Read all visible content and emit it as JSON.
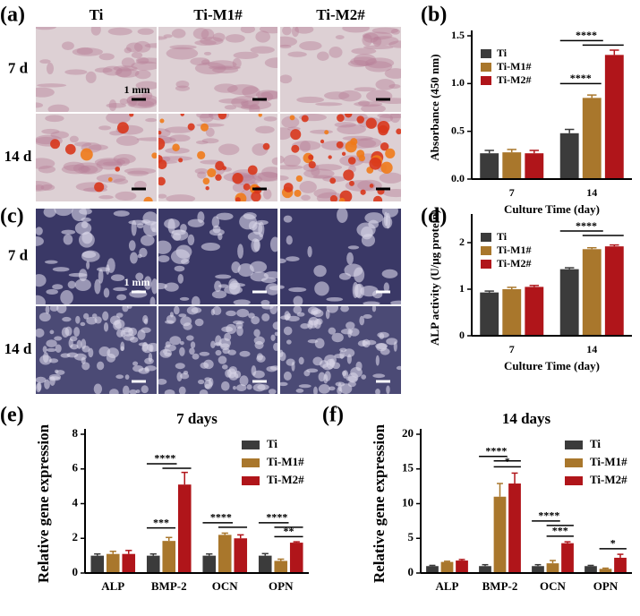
{
  "image_panels": [
    {
      "label": "(a)",
      "columns": [
        "Ti",
        "Ti-M1#",
        "Ti-M2#"
      ],
      "rows": [
        "7 d",
        "14 d"
      ],
      "scale_bar": "1 mm"
    },
    {
      "label": "(c)",
      "rows": [
        "7 d",
        "14 d"
      ],
      "scale_bar": "1 mm"
    }
  ],
  "chart_data": [
    {
      "type": "bar",
      "panel": "(b)",
      "x_label": "Culture Time (day)",
      "y_label": "Absorbance (450 nm)",
      "categories": [
        "7",
        "14"
      ],
      "series": [
        {
          "name": "Ti",
          "color": "#3b3b3b",
          "values": [
            0.27,
            0.48
          ],
          "errors": [
            0.03,
            0.04
          ]
        },
        {
          "name": "Ti-M1#",
          "color": "#a9772c",
          "values": [
            0.28,
            0.85
          ],
          "errors": [
            0.03,
            0.03
          ]
        },
        {
          "name": "Ti-M2#",
          "color": "#b0151a",
          "values": [
            0.27,
            1.3
          ],
          "errors": [
            0.03,
            0.05
          ]
        }
      ],
      "ylim": [
        0,
        1.5
      ],
      "yticks": [
        {
          "value": 0,
          "label": "0.0"
        },
        0.5,
        {
          "value": 1,
          "label": "1.0"
        },
        1.5
      ],
      "legend": "upper left",
      "annotations": [
        "****",
        "****"
      ]
    },
    {
      "type": "bar",
      "panel": "(d)",
      "x_label": "Culture Time (day)",
      "y_label": "ALP activity (U/μg protein)",
      "categories": [
        "7",
        "14"
      ],
      "series": [
        {
          "name": "Ti",
          "color": "#3b3b3b",
          "values": [
            0.93,
            1.43
          ],
          "errors": [
            0.03,
            0.03
          ]
        },
        {
          "name": "Ti-M1#",
          "color": "#a9772c",
          "values": [
            1.0,
            1.86
          ],
          "errors": [
            0.04,
            0.03
          ]
        },
        {
          "name": "Ti-M2#",
          "color": "#b0151a",
          "values": [
            1.05,
            1.92
          ],
          "errors": [
            0.03,
            0.03
          ]
        }
      ],
      "ylim": [
        0,
        2.5
      ],
      "yticks": [
        0,
        1,
        2
      ],
      "legend": "upper left",
      "annotations": [
        "****"
      ]
    },
    {
      "type": "bar",
      "panel": "(e)",
      "title": "7 days",
      "y_label": "Relative gene expression",
      "categories": [
        "ALP",
        "BMP-2",
        "OCN",
        "OPN"
      ],
      "series": [
        {
          "name": "Ti",
          "color": "#3b3b3b",
          "values": [
            1.0,
            1.0,
            1.0,
            1.0
          ],
          "errors": [
            0.1,
            0.1,
            0.1,
            0.12
          ]
        },
        {
          "name": "Ti-M1#",
          "color": "#a9772c",
          "values": [
            1.1,
            1.85,
            2.2,
            0.7
          ],
          "errors": [
            0.15,
            0.2,
            0.1,
            0.1
          ]
        },
        {
          "name": "Ti-M2#",
          "color": "#b0151a",
          "values": [
            1.1,
            5.1,
            2.0,
            1.75
          ],
          "errors": [
            0.2,
            0.7,
            0.2,
            0.05
          ]
        }
      ],
      "ylim": [
        0,
        8
      ],
      "yticks": [
        0,
        2,
        4,
        6,
        8
      ],
      "legend": "upper right",
      "annotations": [
        "****",
        "***",
        "****",
        "****",
        "**"
      ]
    },
    {
      "type": "bar",
      "panel": "(f)",
      "title": "14 days",
      "y_label": "Relative gene expression",
      "categories": [
        "ALP",
        "BMP-2",
        "OCN",
        "OPN"
      ],
      "series": [
        {
          "name": "Ti",
          "color": "#3b3b3b",
          "values": [
            1.0,
            1.0,
            1.0,
            1.0
          ],
          "errors": [
            0.1,
            0.2,
            0.2,
            0.1
          ]
        },
        {
          "name": "Ti-M1#",
          "color": "#a9772c",
          "values": [
            1.6,
            11.0,
            1.4,
            0.6
          ],
          "errors": [
            0.1,
            1.9,
            0.4,
            0.1
          ]
        },
        {
          "name": "Ti-M2#",
          "color": "#b0151a",
          "values": [
            1.8,
            12.9,
            4.3,
            2.2
          ],
          "errors": [
            0.15,
            1.5,
            0.2,
            0.5
          ]
        }
      ],
      "ylim": [
        0,
        20
      ],
      "yticks": [
        0,
        5,
        10,
        15,
        20
      ],
      "legend": "upper right",
      "annotations": [
        "****",
        "*",
        "****",
        "***",
        "*"
      ]
    }
  ]
}
